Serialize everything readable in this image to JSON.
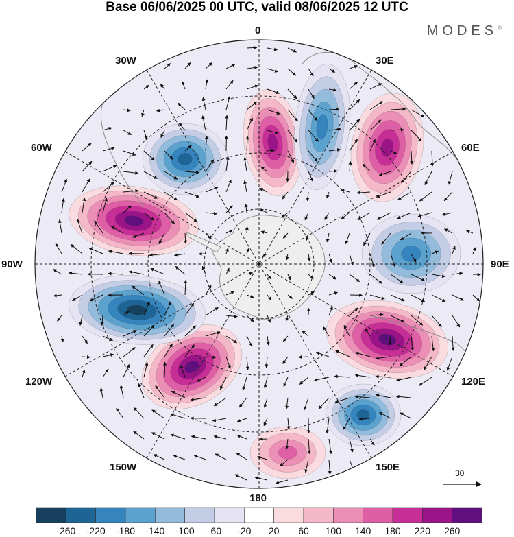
{
  "title": "Base 06/06/2025 00 UTC, valid 08/06/2025 12 UTC",
  "brand": "MODES",
  "brand_mark": "©",
  "longitude_labels": {
    "top": "0",
    "top_right": "30E",
    "right_upper": "60E",
    "right": "90E",
    "right_lower": "120E",
    "bottom_right": "150E",
    "bottom": "180",
    "bottom_left": "150W",
    "left_lower": "120W",
    "left": "90W",
    "left_upper": "60W",
    "top_left": "30W"
  },
  "reference_vector": {
    "label": "30"
  },
  "colorbar": {
    "ticks": [
      "-260",
      "-220",
      "-180",
      "-140",
      "-100",
      "-60",
      "-20",
      "20",
      "60",
      "100",
      "140",
      "180",
      "220",
      "260"
    ],
    "colors": [
      "#16405e",
      "#1d6595",
      "#3584bd",
      "#5ca2ce",
      "#92bbdc",
      "#c3cde6",
      "#e6e4f2",
      "#ffffff",
      "#f9dbe0",
      "#f5b8c9",
      "#ec8fb6",
      "#df5fa6",
      "#c72f96",
      "#9a1488",
      "#5f0f7e"
    ]
  },
  "anomaly_centers": [
    {
      "sign": "negative",
      "strength": 180
    },
    {
      "sign": "positive",
      "strength": 180
    },
    {
      "sign": "negative",
      "strength": 160
    },
    {
      "sign": "positive",
      "strength": 200
    },
    {
      "sign": "negative",
      "strength": 170
    },
    {
      "sign": "positive",
      "strength": 220
    },
    {
      "sign": "negative",
      "strength": 180
    },
    {
      "sign": "positive",
      "strength": 100
    },
    {
      "sign": "positive",
      "strength": 240
    },
    {
      "sign": "negative",
      "strength": 240
    },
    {
      "sign": "positive",
      "strength": 220
    }
  ]
}
